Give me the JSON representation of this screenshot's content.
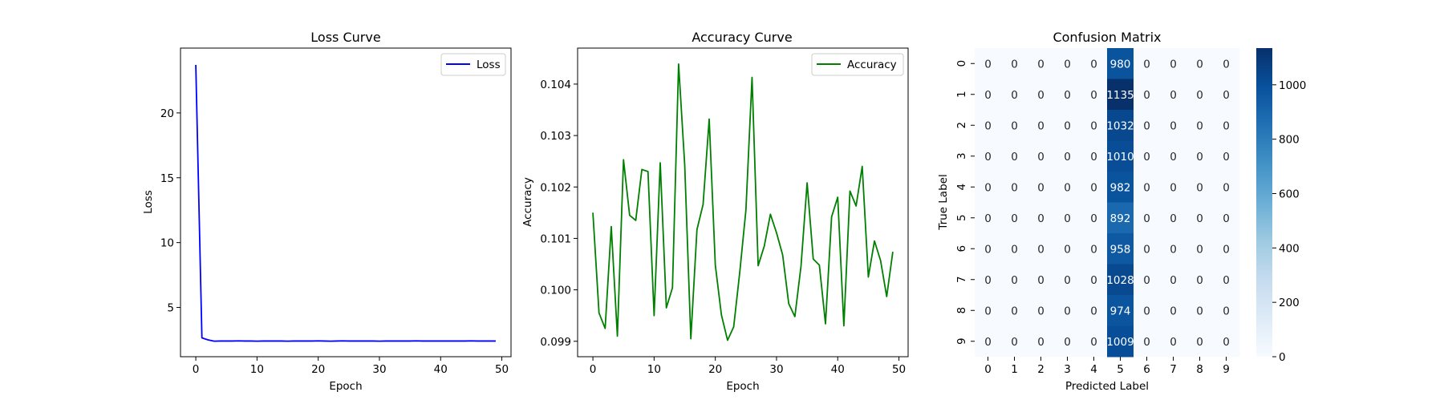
{
  "chart_data": [
    {
      "type": "line",
      "title": "Loss Curve",
      "xlabel": "Epoch",
      "ylabel": "Loss",
      "xlim": [
        -2.5,
        51.5
      ],
      "ylim": [
        1.2,
        25.0
      ],
      "xticks": [
        0,
        10,
        20,
        30,
        40,
        50
      ],
      "yticks": [
        5,
        10,
        15,
        20
      ],
      "legend": "top-right",
      "color": "#0000ff",
      "series": [
        {
          "name": "Loss",
          "x": [
            0,
            1,
            2,
            3,
            4,
            5,
            6,
            7,
            8,
            9,
            10,
            11,
            12,
            13,
            14,
            15,
            16,
            17,
            18,
            19,
            20,
            21,
            22,
            23,
            24,
            25,
            26,
            27,
            28,
            29,
            30,
            31,
            32,
            33,
            34,
            35,
            36,
            37,
            38,
            39,
            40,
            41,
            42,
            43,
            44,
            45,
            46,
            47,
            48,
            49
          ],
          "values": [
            23.7,
            2.65,
            2.5,
            2.4,
            2.41,
            2.41,
            2.41,
            2.42,
            2.41,
            2.41,
            2.4,
            2.41,
            2.41,
            2.41,
            2.41,
            2.4,
            2.41,
            2.41,
            2.41,
            2.41,
            2.42,
            2.41,
            2.4,
            2.41,
            2.42,
            2.41,
            2.41,
            2.41,
            2.41,
            2.41,
            2.4,
            2.41,
            2.41,
            2.41,
            2.41,
            2.41,
            2.42,
            2.41,
            2.41,
            2.41,
            2.41,
            2.41,
            2.41,
            2.41,
            2.41,
            2.42,
            2.41,
            2.41,
            2.41,
            2.41
          ]
        }
      ]
    },
    {
      "type": "line",
      "title": "Accuracy Curve",
      "xlabel": "Epoch",
      "ylabel": "Accuracy",
      "xlim": [
        -2.5,
        51.5
      ],
      "ylim": [
        0.0987,
        0.1047
      ],
      "xticks": [
        0,
        10,
        20,
        30,
        40,
        50
      ],
      "yticks": [
        0.099,
        0.1,
        0.101,
        0.102,
        0.103,
        0.104
      ],
      "ytick_labels": [
        "0.099",
        "0.100",
        "0.101",
        "0.102",
        "0.103",
        "0.104"
      ],
      "legend": "top-right",
      "color": "#008000",
      "series": [
        {
          "name": "Accuracy",
          "x": [
            0,
            1,
            2,
            3,
            4,
            5,
            6,
            7,
            8,
            9,
            10,
            11,
            12,
            13,
            14,
            15,
            16,
            17,
            18,
            19,
            20,
            21,
            22,
            23,
            24,
            25,
            26,
            27,
            28,
            29,
            30,
            31,
            32,
            33,
            34,
            35,
            36,
            37,
            38,
            39,
            40,
            41,
            42,
            43,
            44,
            45,
            46,
            47,
            48,
            49
          ],
          "values": [
            0.1015,
            0.09955,
            0.09925,
            0.10123,
            0.0991,
            0.10253,
            0.10145,
            0.10135,
            0.10234,
            0.1023,
            0.0995,
            0.10247,
            0.09965,
            0.10004,
            0.10439,
            0.10243,
            0.09905,
            0.10117,
            0.10166,
            0.10332,
            0.10048,
            0.09951,
            0.09902,
            0.09928,
            0.10035,
            0.10155,
            0.10413,
            0.10047,
            0.10085,
            0.10147,
            0.10111,
            0.10068,
            0.09973,
            0.09948,
            0.10046,
            0.10208,
            0.1006,
            0.10048,
            0.09934,
            0.10142,
            0.1018,
            0.0993,
            0.10192,
            0.10163,
            0.1024,
            0.10025,
            0.10095,
            0.10057,
            0.09987,
            0.10074
          ]
        }
      ]
    },
    {
      "type": "heatmap",
      "title": "Confusion Matrix",
      "xlabel": "Predicted Label",
      "ylabel": "True Label",
      "x_categories": [
        "0",
        "1",
        "2",
        "3",
        "4",
        "5",
        "6",
        "7",
        "8",
        "9"
      ],
      "y_categories": [
        "0",
        "1",
        "2",
        "3",
        "4",
        "5",
        "6",
        "7",
        "8",
        "9"
      ],
      "values": [
        [
          0,
          0,
          0,
          0,
          0,
          980,
          0,
          0,
          0,
          0
        ],
        [
          0,
          0,
          0,
          0,
          0,
          1135,
          0,
          0,
          0,
          0
        ],
        [
          0,
          0,
          0,
          0,
          0,
          1032,
          0,
          0,
          0,
          0
        ],
        [
          0,
          0,
          0,
          0,
          0,
          1010,
          0,
          0,
          0,
          0
        ],
        [
          0,
          0,
          0,
          0,
          0,
          982,
          0,
          0,
          0,
          0
        ],
        [
          0,
          0,
          0,
          0,
          0,
          892,
          0,
          0,
          0,
          0
        ],
        [
          0,
          0,
          0,
          0,
          0,
          958,
          0,
          0,
          0,
          0
        ],
        [
          0,
          0,
          0,
          0,
          0,
          1028,
          0,
          0,
          0,
          0
        ],
        [
          0,
          0,
          0,
          0,
          0,
          974,
          0,
          0,
          0,
          0
        ],
        [
          0,
          0,
          0,
          0,
          0,
          1009,
          0,
          0,
          0,
          0
        ]
      ],
      "colormap": "Blues",
      "colorbar_range": [
        0,
        1135
      ],
      "colorbar_ticks": [
        0,
        200,
        400,
        600,
        800,
        1000
      ]
    }
  ]
}
